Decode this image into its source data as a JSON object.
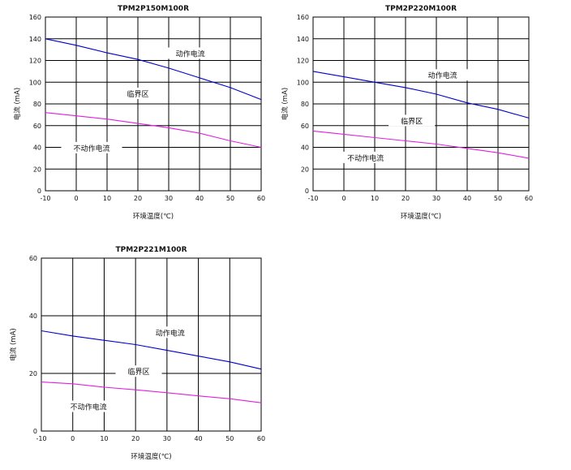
{
  "chart_data": [
    {
      "type": "line",
      "title": "TPM2P150M100R",
      "xlabel": "环境温度(℃)",
      "ylabel": "电流 (mA)",
      "xlim": [
        -10,
        60
      ],
      "ylim": [
        0,
        160
      ],
      "xticks": [
        -10,
        0,
        10,
        20,
        30,
        40,
        50,
        60
      ],
      "yticks": [
        0,
        20,
        40,
        60,
        80,
        100,
        120,
        140,
        160
      ],
      "grid": true,
      "series": [
        {
          "values": [
            [
              -10,
              140
            ],
            [
              0,
              134
            ],
            [
              10,
              127
            ],
            [
              20,
              121
            ],
            [
              30,
              113
            ],
            [
              40,
              104
            ],
            [
              50,
              95
            ],
            [
              60,
              84
            ]
          ],
          "color": "#0000cc"
        },
        {
          "values": [
            [
              -10,
              72
            ],
            [
              0,
              69
            ],
            [
              10,
              66
            ],
            [
              20,
              62
            ],
            [
              30,
              58
            ],
            [
              40,
              53
            ],
            [
              50,
              46
            ],
            [
              60,
              40
            ]
          ],
          "color": "#e020e0"
        }
      ],
      "annotations": [
        {
          "text": "动作电流",
          "x": 37,
          "y": 126
        },
        {
          "text": "临界区",
          "x": 20,
          "y": 89
        },
        {
          "text": "不动作电流",
          "x": 5,
          "y": 39
        }
      ]
    },
    {
      "type": "line",
      "title": "TPM2P220M100R",
      "xlabel": "环境温度(℃)",
      "ylabel": "电流 (mA)",
      "xlim": [
        -10,
        60
      ],
      "ylim": [
        0,
        160
      ],
      "xticks": [
        -10,
        0,
        10,
        20,
        30,
        40,
        50,
        60
      ],
      "yticks": [
        0,
        20,
        40,
        60,
        80,
        100,
        120,
        140,
        160
      ],
      "grid": true,
      "series": [
        {
          "values": [
            [
              -10,
              110
            ],
            [
              0,
              105
            ],
            [
              10,
              100
            ],
            [
              20,
              95
            ],
            [
              30,
              89
            ],
            [
              40,
              81
            ],
            [
              50,
              75
            ],
            [
              60,
              67
            ]
          ],
          "color": "#0000cc"
        },
        {
          "values": [
            [
              -10,
              55
            ],
            [
              0,
              52
            ],
            [
              10,
              49
            ],
            [
              20,
              46
            ],
            [
              30,
              43
            ],
            [
              40,
              39
            ],
            [
              50,
              35
            ],
            [
              60,
              30
            ]
          ],
          "color": "#e020e0"
        }
      ],
      "annotations": [
        {
          "text": "动作电流",
          "x": 32,
          "y": 106
        },
        {
          "text": "临界区",
          "x": 22,
          "y": 64
        },
        {
          "text": "不动作电流",
          "x": 7,
          "y": 30
        }
      ]
    },
    {
      "type": "line",
      "title": "TPM2P221M100R",
      "xlabel": "环境温度(℃)",
      "ylabel": "电流 (mA)",
      "xlim": [
        -10,
        60
      ],
      "ylim": [
        0,
        60
      ],
      "xticks": [
        -10,
        0,
        10,
        20,
        30,
        40,
        50,
        60
      ],
      "yticks": [
        0,
        20,
        40,
        60
      ],
      "grid": true,
      "series": [
        {
          "values": [
            [
              -10,
              34.8
            ],
            [
              0,
              33
            ],
            [
              10,
              31.5
            ],
            [
              20,
              30
            ],
            [
              30,
              28
            ],
            [
              40,
              26
            ],
            [
              50,
              24
            ],
            [
              60,
              21.5
            ]
          ],
          "color": "#0000cc"
        },
        {
          "values": [
            [
              -10,
              17
            ],
            [
              0,
              16.4
            ],
            [
              10,
              15.2
            ],
            [
              20,
              14.3
            ],
            [
              30,
              13.3
            ],
            [
              40,
              12.2
            ],
            [
              50,
              11.2
            ],
            [
              60,
              9.8
            ]
          ],
          "color": "#e020e0"
        }
      ],
      "annotations": [
        {
          "text": "动作电流",
          "x": 31,
          "y": 34
        },
        {
          "text": "临界区",
          "x": 21,
          "y": 20.5
        },
        {
          "text": "不动作电流",
          "x": 5,
          "y": 8.3
        }
      ]
    }
  ]
}
